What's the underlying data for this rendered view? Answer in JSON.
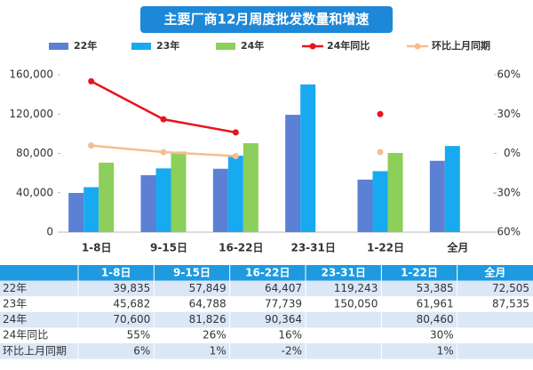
{
  "chart_data": {
    "type": "bar",
    "title": "主要厂商12月周度批发数量和增速",
    "categories": [
      "1-8日",
      "9-15日",
      "16-22日",
      "23-31日",
      "1-22日",
      "全月"
    ],
    "series": [
      {
        "name": "22年",
        "color": "#5b80d4",
        "type": "bar",
        "values": [
          39835,
          57849,
          64407,
          119243,
          53385,
          72505
        ],
        "value_labels": [
          "39,835",
          "57,849",
          "64,407",
          "119,243",
          "53,385",
          "72,505"
        ]
      },
      {
        "name": "23年",
        "color": "#18aaf0",
        "type": "bar",
        "values": [
          45682,
          64788,
          77739,
          150050,
          61961,
          87535
        ],
        "value_labels": [
          "45,682",
          "64,788",
          "77,739",
          "150,050",
          "61,961",
          "87,535"
        ]
      },
      {
        "name": "24年",
        "color": "#8ccf5a",
        "type": "bar",
        "values": [
          70600,
          81826,
          90364,
          null,
          80460,
          null
        ],
        "value_labels": [
          "70,600",
          "81,826",
          "90,364",
          null,
          "80,460",
          null
        ]
      },
      {
        "name": "24年同比",
        "color": "#e8141e",
        "type": "line",
        "axis": "y2",
        "values": [
          55,
          26,
          16,
          null,
          30,
          null
        ],
        "value_labels": [
          "55%",
          "26%",
          "16%",
          null,
          "30%",
          null
        ]
      },
      {
        "name": "环比上月同期",
        "color": "#f5bd8f",
        "type": "line",
        "axis": "y2",
        "values": [
          6,
          1,
          -2,
          null,
          1,
          null
        ],
        "value_labels": [
          "6%",
          "1%",
          "-2%",
          null,
          "1%",
          null
        ]
      }
    ],
    "ylim": [
      0,
      160000
    ],
    "yticks": [
      0,
      {
        "value": 40000,
        "label": "40,000"
      },
      {
        "value": 80000,
        "label": "80,000"
      },
      {
        "value": 120000,
        "label": "120,000"
      },
      {
        "value": 160000,
        "label": "160,000"
      }
    ],
    "y2lim": [
      -60,
      60
    ],
    "y2ticks": [
      {
        "value": -60,
        "label": "-60%"
      },
      {
        "value": -30,
        "label": "-30%"
      },
      {
        "value": 0,
        "label": "0%"
      },
      {
        "value": 30,
        "label": "30%"
      },
      {
        "value": 60,
        "label": "60%"
      }
    ],
    "grid": false
  }
}
